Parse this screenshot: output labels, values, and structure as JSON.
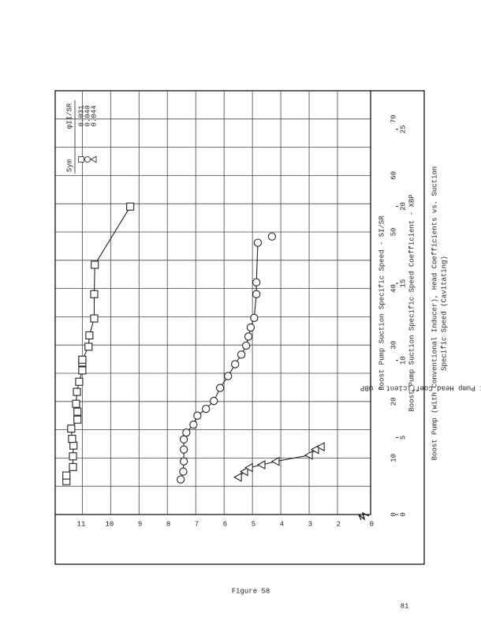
{
  "chart_data": {
    "type": "scatter",
    "x_label": "Boost Pump Suction Specific Speed - SI/SR",
    "x2_label": "Boost Pump Suction Specific Speed Coefficient - XBP",
    "y_label": "Boost Pump Head Coefficient - ψBP",
    "xlim": [
      0,
      75
    ],
    "xticks": [
      0,
      10,
      20,
      30,
      40,
      50,
      60,
      70
    ],
    "xminorticks": [
      5,
      15,
      25,
      35,
      45,
      55,
      65
    ],
    "x2lim": [
      0,
      27.5
    ],
    "x2ticks": [
      0,
      5,
      10,
      15,
      20,
      25
    ],
    "ylim": [
      0,
      11.9
    ],
    "yticks": [
      0,
      2,
      3,
      4,
      5,
      6,
      7,
      8,
      9,
      10,
      11
    ],
    "axis_break": true,
    "grid": true,
    "legend_header": [
      "Sym",
      "φII/SR"
    ],
    "series": [
      {
        "name": "0.031",
        "marker": "square",
        "color": "#222",
        "x": [
          5.9,
          6.9,
          8.4,
          10.3,
          12.2,
          13.4,
          15.2,
          16.8,
          18.2,
          19.6,
          21.7,
          23.5,
          25.5,
          26.9,
          27.4,
          29.7,
          31.7,
          34.7,
          39.0,
          44.2,
          54.5
        ],
        "values": [
          11.56,
          11.56,
          11.33,
          11.33,
          11.31,
          11.36,
          11.39,
          11.17,
          11.17,
          11.22,
          11.19,
          11.11,
          11.0,
          11.0,
          11.0,
          10.78,
          10.75,
          10.58,
          10.58,
          10.56,
          9.31
        ]
      },
      {
        "name": "0.040",
        "marker": "circle",
        "color": "#222",
        "x": [
          6.2,
          7.6,
          9.4,
          11.5,
          13.3,
          14.5,
          15.9,
          17.5,
          18.7,
          20.1,
          22.4,
          24.5,
          26.6,
          28.3,
          29.9,
          31.5,
          33.1,
          34.8,
          39.0,
          41.1,
          48.1,
          49.2
        ],
        "values": [
          7.53,
          7.44,
          7.42,
          7.42,
          7.42,
          7.33,
          7.08,
          6.94,
          6.64,
          6.36,
          6.14,
          5.86,
          5.61,
          5.39,
          5.22,
          5.14,
          5.06,
          4.94,
          4.86,
          4.86,
          4.81,
          4.31
        ]
      },
      {
        "name": "0.044",
        "marker": "triangle",
        "color": "#222",
        "x": [
          6.6,
          7.6,
          8.3,
          8.8,
          9.4,
          10.5,
          11.5,
          12.0
        ],
        "values": [
          5.5,
          5.28,
          5.11,
          4.67,
          4.17,
          3.0,
          2.78,
          2.58
        ]
      }
    ]
  },
  "figure_label": "Figure 58",
  "caption": [
    "Boost Pump (with Conventional Inducer), Head Coefficients vs. Suction",
    "Specific Speed (Cavitating)"
  ],
  "page_number": "81"
}
